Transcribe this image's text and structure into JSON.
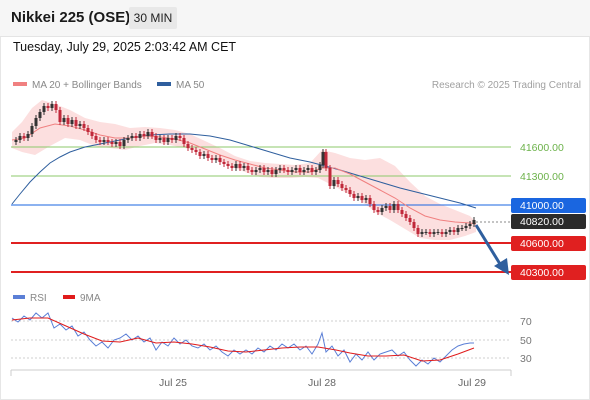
{
  "header": {
    "title": "Nikkei 225 (OSE)",
    "interval": "30 MIN",
    "datetime": "Tuesday, July 29, 2025 2:03:42 AM CET"
  },
  "legend": {
    "ma20": {
      "label": "MA 20 + Bollinger Bands",
      "color": "#f08080"
    },
    "ma50": {
      "label": "MA 50",
      "color": "#2f5f9e"
    },
    "research": "Research © 2025 Trading Central"
  },
  "rsi_legend": {
    "rsi": {
      "label": "RSI",
      "color": "#5b7fd6"
    },
    "ma9": {
      "label": "9MA",
      "color": "#e01b1b"
    }
  },
  "levels": {
    "r2": "41600.00",
    "r1": "41300.00",
    "pivot": "41000.00",
    "last": "40820.00",
    "s1": "40600.00",
    "s2": "40300.00"
  },
  "rsi_ticks": [
    "70",
    "50",
    "30"
  ],
  "x_ticks": [
    "Jul 25",
    "Jul 28",
    "Jul 29"
  ],
  "colors": {
    "resistance": "#7cc35a",
    "pivot": "#1a66e0",
    "support": "#e02020",
    "last_price": "#2b2b2b",
    "arrow": "#2f5f9e",
    "candle_up": "#333333",
    "candle_down": "#c0283a",
    "band_fill": "#fbd9d9"
  }
}
